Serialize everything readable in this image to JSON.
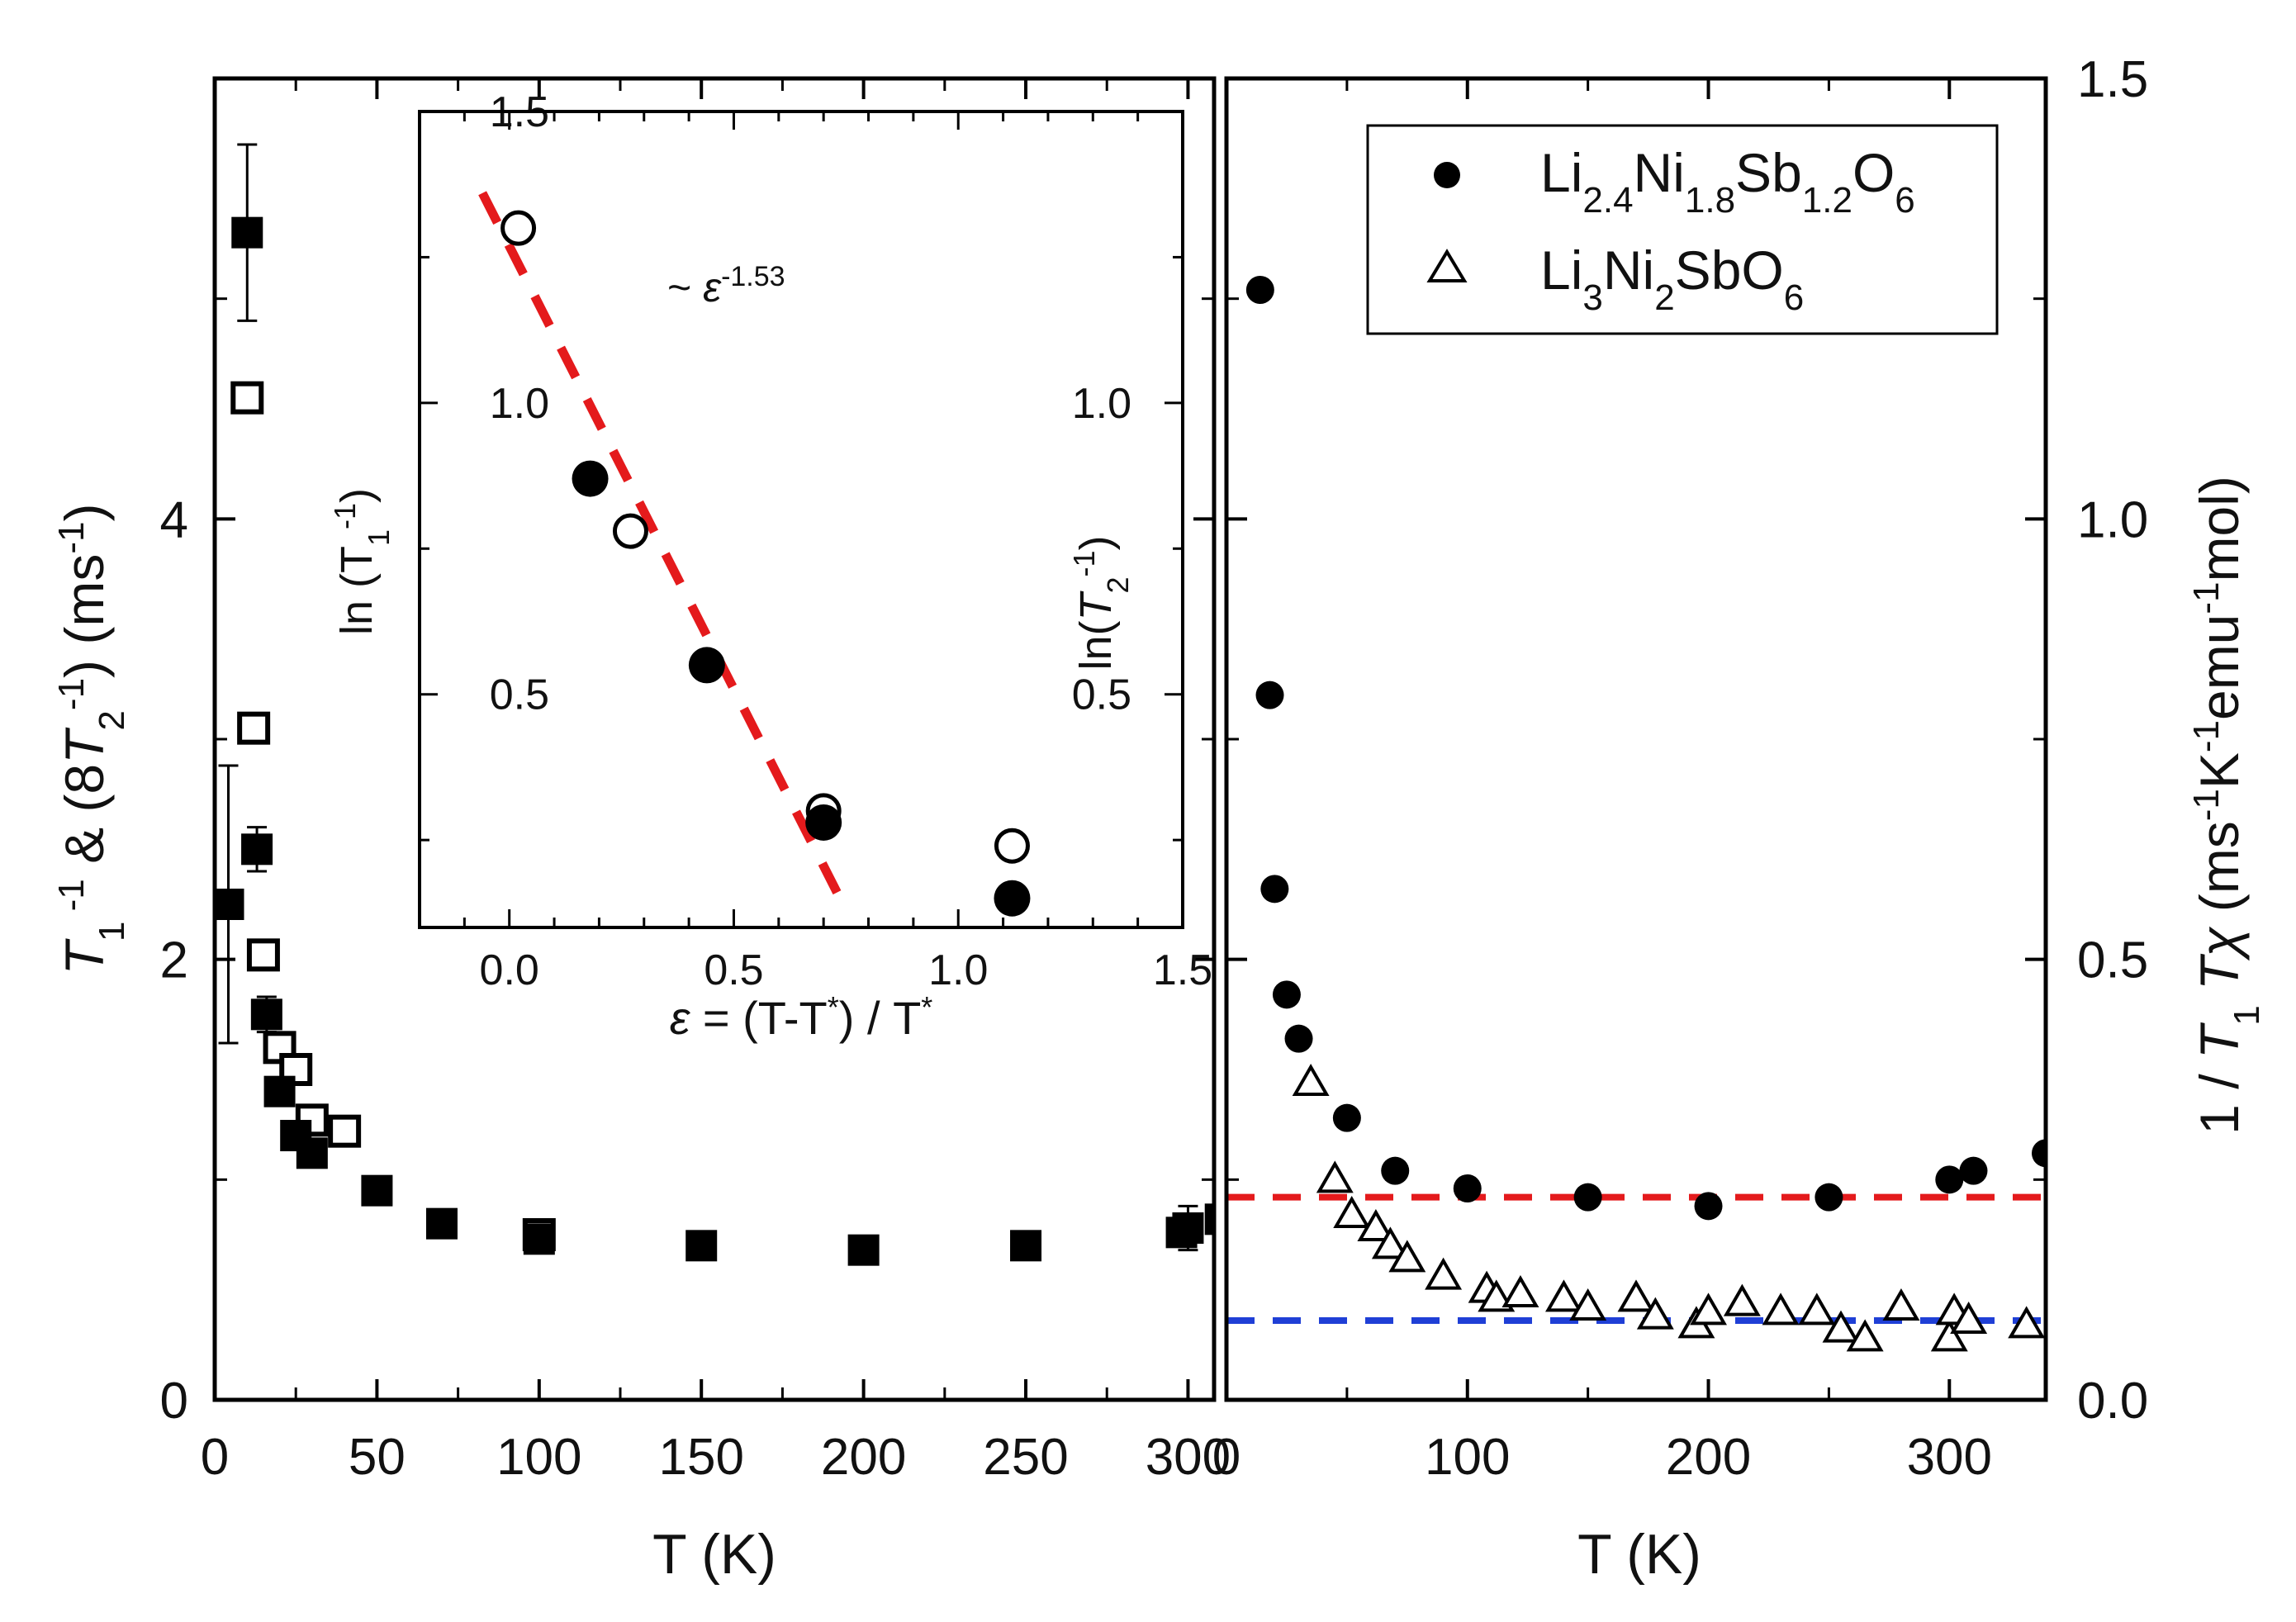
{
  "chart_data": [
    {
      "id": "left-panel",
      "type": "scatter",
      "xlabel": "T (K)",
      "ylabel": "T1^-1 & (8T2^-1) (ms^-1)",
      "xlim": [
        0,
        320
      ],
      "ylim": [
        0,
        6
      ],
      "x_ticks": [
        "0",
        "50",
        "100",
        "150",
        "200",
        "250",
        "300"
      ],
      "y_ticks": [
        {
          "value": 0,
          "label": "0"
        },
        {
          "value": 2,
          "label": "2"
        },
        {
          "value": 4,
          "label": "4"
        }
      ],
      "series": [
        {
          "name": "T1^-1",
          "marker": "filled-square",
          "points": [
            [
              4.2,
              2.25
            ],
            [
              10,
              5.3
            ],
            [
              13,
              2.5
            ],
            [
              16,
              1.75
            ],
            [
              20,
              1.4
            ],
            [
              25,
              1.2
            ],
            [
              30,
              1.12
            ],
            [
              50,
              0.95
            ],
            [
              70,
              0.8
            ],
            [
              100,
              0.73
            ],
            [
              150,
              0.7
            ],
            [
              200,
              0.68
            ],
            [
              250,
              0.7
            ],
            [
              298,
              0.76
            ],
            [
              300,
              0.78
            ],
            [
              310,
              0.82
            ]
          ],
          "error_bars": [
            {
              "x": 4.2,
              "y": 2.25,
              "err": 0.63
            },
            {
              "x": 10,
              "y": 5.3,
              "err": 0.4
            },
            {
              "x": 13,
              "y": 2.5,
              "err": 0.1
            },
            {
              "x": 16,
              "y": 1.75,
              "err": 0.08
            },
            {
              "x": 300,
              "y": 0.78,
              "err": 0.1
            }
          ]
        },
        {
          "name": "8T2^-1",
          "marker": "open-square",
          "points": [
            [
              10,
              4.55
            ],
            [
              12,
              3.05
            ],
            [
              15,
              2.02
            ],
            [
              20,
              1.6
            ],
            [
              25,
              1.5
            ],
            [
              30,
              1.27
            ],
            [
              40,
              1.22
            ],
            [
              100,
              0.75
            ]
          ]
        }
      ]
    },
    {
      "id": "inset",
      "type": "scatter",
      "xlabel": "ε = (T-T*) / T*",
      "ylabel_left": "ln (T1^-1)",
      "ylabel_right": "ln(T2^-1)",
      "xlim": [
        -0.2,
        1.5
      ],
      "ylim_left": [
        0.1,
        1.5
      ],
      "ylim_right": [
        0.1,
        1.5
      ],
      "x_ticks": [
        "0.0",
        "0.5",
        "1.0",
        "1.5"
      ],
      "y_ticks_left": [
        {
          "value": 0.5,
          "label": "0.5"
        },
        {
          "value": 1.0,
          "label": "1.0"
        },
        {
          "value": 1.5,
          "label": "1.5"
        }
      ],
      "y_ticks_right": [
        {
          "value": 0.5,
          "label": "0.5"
        },
        {
          "value": 1.0,
          "label": "1.0"
        }
      ],
      "annotation": "~ ε^-1.53",
      "series": [
        {
          "name": "ln(T1^-1)",
          "marker": "filled-circle",
          "axis": "left",
          "points": [
            [
              0.18,
              0.87
            ],
            [
              0.44,
              0.55
            ],
            [
              0.7,
              0.28
            ],
            [
              1.12,
              0.15
            ]
          ]
        },
        {
          "name": "ln(T2^-1)",
          "marker": "open-circle",
          "axis": "right",
          "points": [
            [
              0.02,
              1.3
            ],
            [
              0.27,
              0.78
            ],
            [
              0.7,
              0.3
            ],
            [
              1.12,
              0.24
            ]
          ]
        },
        {
          "name": "fit",
          "style": "dashed",
          "color": "#e41a1c",
          "points": [
            [
              -0.06,
              1.36
            ],
            [
              0.73,
              0.16
            ]
          ]
        }
      ]
    },
    {
      "id": "right-panel",
      "type": "scatter",
      "xlabel": "T (K)",
      "ylabel": "1 / T1 Tχ (ms^-1 K^-1 emu^-1 mol)",
      "xlim": [
        0,
        340
      ],
      "ylim": [
        0,
        1.5
      ],
      "x_ticks": [
        "0",
        "100",
        "200",
        "300"
      ],
      "y_ticks": [
        {
          "value": 0.0,
          "label": "0.0"
        },
        {
          "value": 0.5,
          "label": "0.5"
        },
        {
          "value": 1.0,
          "label": "1.0"
        },
        {
          "value": 1.5,
          "label": "1.5"
        }
      ],
      "legend_position": "top-right",
      "series": [
        {
          "name": "Li2.4Ni1.8Sb1.2O6",
          "marker": "filled-circle",
          "points": [
            [
              14,
              1.26
            ],
            [
              18,
              0.8
            ],
            [
              20,
              0.58
            ],
            [
              25,
              0.46
            ],
            [
              30,
              0.41
            ],
            [
              50,
              0.32
            ],
            [
              70,
              0.26
            ],
            [
              100,
              0.24
            ],
            [
              150,
              0.23
            ],
            [
              200,
              0.22
            ],
            [
              250,
              0.23
            ],
            [
              300,
              0.25
            ],
            [
              310,
              0.26
            ],
            [
              340,
              0.28
            ]
          ]
        },
        {
          "name": "Li3Ni2SbO6",
          "marker": "open-triangle",
          "points": [
            [
              35,
              0.36
            ],
            [
              45,
              0.25
            ],
            [
              52,
              0.21
            ],
            [
              62,
              0.195
            ],
            [
              68,
              0.175
            ],
            [
              75,
              0.16
            ],
            [
              90,
              0.14
            ],
            [
              108,
              0.125
            ],
            [
              112,
              0.115
            ],
            [
              122,
              0.12
            ],
            [
              140,
              0.115
            ],
            [
              150,
              0.105
            ],
            [
              170,
              0.115
            ],
            [
              178,
              0.095
            ],
            [
              195,
              0.085
            ],
            [
              200,
              0.1
            ],
            [
              214,
              0.11
            ],
            [
              230,
              0.1
            ],
            [
              245,
              0.1
            ],
            [
              255,
              0.08
            ],
            [
              265,
              0.07
            ],
            [
              280,
              0.105
            ],
            [
              300,
              0.07
            ],
            [
              302,
              0.1
            ],
            [
              308,
              0.09
            ],
            [
              332,
              0.085
            ]
          ]
        }
      ],
      "reference_lines": [
        {
          "name": "red-dashed",
          "y": 0.23,
          "color": "#e41a1c"
        },
        {
          "name": "blue-dashed",
          "y": 0.09,
          "color": "#1f3fd6"
        }
      ],
      "legend": [
        {
          "label": "Li2.4Ni1.8Sb1.2O6",
          "marker": "filled-circle"
        },
        {
          "label": "Li3Ni2SbO6",
          "marker": "open-triangle"
        }
      ]
    }
  ]
}
